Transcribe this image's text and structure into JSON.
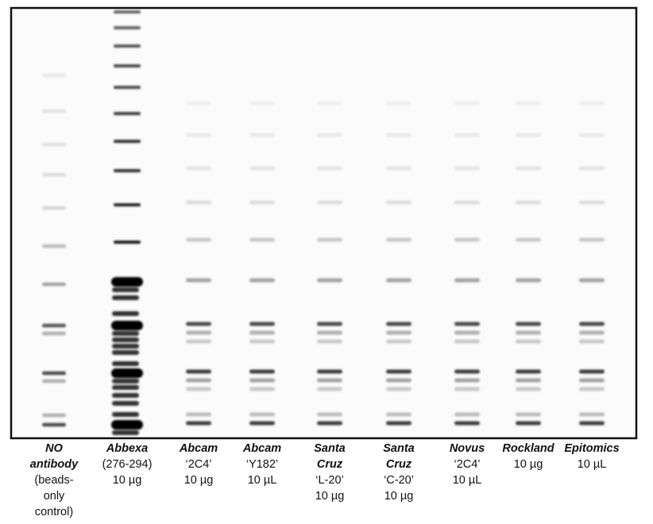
{
  "lanes": [
    {
      "name": [
        "NO",
        "antibody"
      ],
      "details": [
        "(beads-",
        "only",
        "control)"
      ]
    },
    {
      "name": [
        "Abbexa"
      ],
      "details": [
        "(276-294)",
        "10 µg"
      ]
    },
    {
      "name": [
        "Abcam"
      ],
      "details": [
        "‘2C4’",
        "10 µg"
      ]
    },
    {
      "name": [
        "Abcam"
      ],
      "details": [
        "‘Y182’",
        "10 µL"
      ]
    },
    {
      "name": [
        "Santa",
        "Cruz"
      ],
      "details": [
        "‘L-20’",
        "10 µg"
      ]
    },
    {
      "name": [
        "Santa",
        "Cruz"
      ],
      "details": [
        "‘C-20’",
        "10 µg"
      ]
    },
    {
      "name": [
        "Novus"
      ],
      "details": [
        "‘2C4’",
        "10 µL"
      ]
    },
    {
      "name": [
        "Rockland"
      ],
      "details": [
        "10 µg"
      ]
    },
    {
      "name": [
        "Epitomics"
      ],
      "details": [
        "10 µL"
      ]
    }
  ]
}
